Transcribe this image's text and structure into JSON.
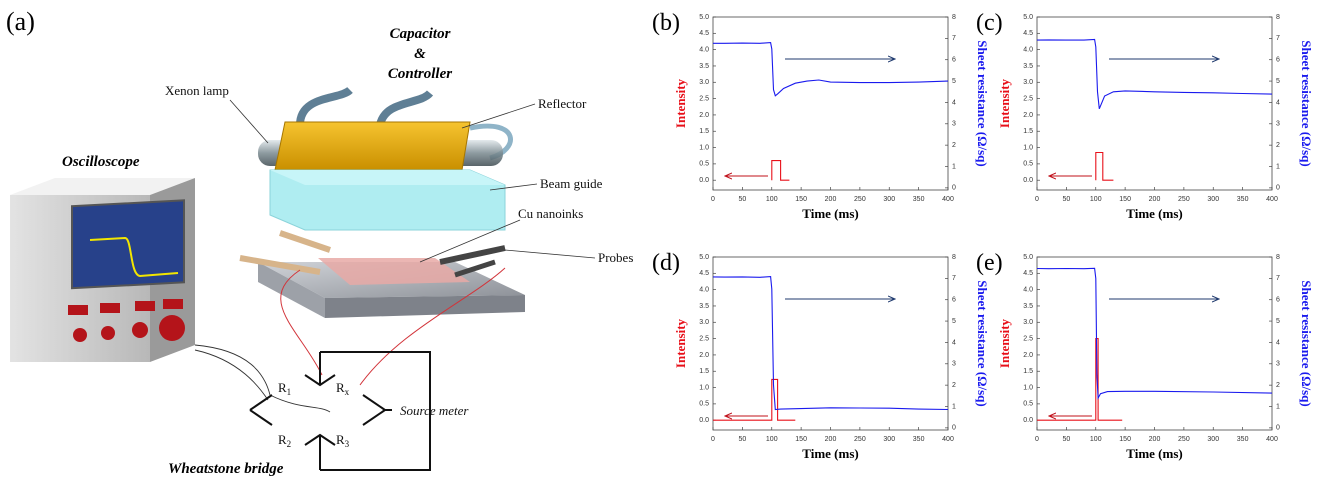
{
  "diagram": {
    "panel": "(a)",
    "capacitor": [
      "Capacitor",
      "&",
      "Controller"
    ],
    "xenon_lamp": "Xenon lamp",
    "reflector": "Reflector",
    "beam_guide": "Beam guide",
    "cu_nanoinks": "Cu nanoinks",
    "probes": "Probes",
    "oscilloscope": "Oscilloscope",
    "resistors": [
      {
        "base": "R",
        "sub": "1"
      },
      {
        "base": "R",
        "sub": "x"
      },
      {
        "base": "R",
        "sub": "2"
      },
      {
        "base": "R",
        "sub": "3"
      }
    ],
    "source_meter": "Source meter",
    "wheatstone_bridge": "Wheatstone bridge"
  },
  "chart_data": [
    {
      "type": "line",
      "panel": "(b)",
      "x_label": "Time (ms)",
      "y_label": "Intensity",
      "y2_label": "Sheet resistance (Ω/sq)",
      "xlim": [
        0,
        400
      ],
      "xticks": [
        0,
        50,
        100,
        150,
        200,
        250,
        300,
        350,
        400
      ],
      "ylim": [
        -0.3,
        5.0
      ],
      "yticks": [
        {
          "value": 0,
          "label": "0.0"
        },
        0.5,
        {
          "value": 1,
          "label": "1.0"
        },
        1.5,
        {
          "value": 2,
          "label": "2.0"
        },
        2.5,
        {
          "value": 3,
          "label": "3.0"
        },
        3.5,
        {
          "value": 4,
          "label": "4.0"
        },
        4.5,
        {
          "value": 5,
          "label": "5.0"
        }
      ],
      "y2lim": [
        -0.1,
        8
      ],
      "y2ticks": [
        0,
        1,
        2,
        3,
        4,
        5,
        6,
        7,
        8
      ],
      "series": [
        {
          "color": "#e8101a",
          "x": [
            100,
            100,
            115,
            115,
            130
          ],
          "values": [
            0,
            0.6,
            0.6,
            0,
            0
          ]
        },
        {
          "color": "#1a1aee",
          "axis": "y2",
          "x": [
            0,
            20,
            50,
            80,
            98,
            100,
            103,
            106,
            110,
            120,
            140,
            160,
            180,
            200,
            250,
            300,
            350,
            400
          ],
          "values": [
            6.77,
            6.77,
            6.78,
            6.77,
            6.8,
            6.5,
            4.6,
            4.31,
            4.4,
            4.65,
            4.9,
            5.0,
            5.05,
            4.95,
            4.93,
            4.93,
            4.95,
            5.0
          ]
        }
      ]
    },
    {
      "type": "line",
      "panel": "(c)",
      "x_label": "Time (ms)",
      "y_label": "Intensity",
      "y2_label": "Sheet resistance (Ω/sq)",
      "xlim": [
        0,
        400
      ],
      "xticks": [
        0,
        50,
        100,
        150,
        200,
        250,
        300,
        350,
        400
      ],
      "ylim": [
        -0.3,
        5.0
      ],
      "yticks": [
        {
          "value": 0,
          "label": "0.0"
        },
        0.5,
        {
          "value": 1,
          "label": "1.0"
        },
        1.5,
        {
          "value": 2,
          "label": "2.0"
        },
        2.5,
        {
          "value": 3,
          "label": "3.0"
        },
        3.5,
        {
          "value": 4,
          "label": "4.0"
        },
        4.5,
        {
          "value": 5,
          "label": "5.0"
        }
      ],
      "y2lim": [
        -0.1,
        8
      ],
      "y2ticks": [
        0,
        1,
        2,
        3,
        4,
        5,
        6,
        7,
        8
      ],
      "series": [
        {
          "color": "#e8101a",
          "x": [
            100,
            100,
            112,
            112,
            130
          ],
          "values": [
            0,
            0.85,
            0.85,
            0,
            0
          ]
        },
        {
          "color": "#1a1aee",
          "axis": "y2",
          "x": [
            0,
            20,
            50,
            80,
            98,
            100,
            103,
            106,
            115,
            130,
            150,
            200,
            250,
            300,
            350,
            400
          ],
          "values": [
            6.92,
            6.93,
            6.92,
            6.92,
            6.95,
            6.6,
            4.5,
            3.7,
            4.3,
            4.5,
            4.54,
            4.5,
            4.47,
            4.45,
            4.42,
            4.39
          ]
        }
      ]
    },
    {
      "type": "line",
      "panel": "(d)",
      "x_label": "Time (ms)",
      "y_label": "Intensity",
      "y2_label": "Sheet resistance (Ω/sq)",
      "xlim": [
        0,
        400
      ],
      "xticks": [
        0,
        50,
        100,
        150,
        200,
        250,
        300,
        350,
        400
      ],
      "ylim": [
        -0.3,
        5.0
      ],
      "yticks": [
        {
          "value": 0,
          "label": "0.0"
        },
        0.5,
        {
          "value": 1,
          "label": "1.0"
        },
        1.5,
        {
          "value": 2,
          "label": "2.0"
        },
        2.5,
        {
          "value": 3,
          "label": "3.0"
        },
        3.5,
        {
          "value": 4,
          "label": "4.0"
        },
        4.5,
        {
          "value": 5,
          "label": "5.0"
        }
      ],
      "y2lim": [
        -0.1,
        8
      ],
      "y2ticks": [
        0,
        1,
        2,
        3,
        4,
        5,
        6,
        7,
        8
      ],
      "series": [
        {
          "color": "#e8101a",
          "x": [
            0,
            100,
            100,
            110,
            110,
            140
          ],
          "values": [
            0,
            0,
            1.25,
            1.25,
            0,
            0
          ]
        },
        {
          "color": "#1a1aee",
          "axis": "y2",
          "x": [
            0,
            20,
            50,
            80,
            98,
            100,
            103,
            106,
            115,
            150,
            200,
            250,
            300,
            350,
            400
          ],
          "values": [
            7.07,
            7.06,
            7.07,
            7.05,
            7.08,
            6.5,
            2.0,
            0.86,
            0.88,
            0.9,
            0.94,
            0.93,
            0.92,
            0.88,
            0.86
          ]
        }
      ]
    },
    {
      "type": "line",
      "panel": "(e)",
      "x_label": "Time (ms)",
      "y_label": "Intensity",
      "y2_label": "Sheet resistance (Ω/sq)",
      "xlim": [
        0,
        400
      ],
      "xticks": [
        0,
        50,
        100,
        150,
        200,
        250,
        300,
        350,
        400
      ],
      "ylim": [
        -0.3,
        5.0
      ],
      "yticks": [
        {
          "value": 0,
          "label": "0.0"
        },
        0.5,
        {
          "value": 1,
          "label": "1.0"
        },
        1.5,
        {
          "value": 2,
          "label": "2.0"
        },
        2.5,
        {
          "value": 3,
          "label": "3.0"
        },
        3.5,
        {
          "value": 4,
          "label": "4.0"
        },
        4.5,
        {
          "value": 5,
          "label": "5.0"
        }
      ],
      "y2lim": [
        -0.1,
        8
      ],
      "y2ticks": [
        0,
        1,
        2,
        3,
        4,
        5,
        6,
        7,
        8
      ],
      "series": [
        {
          "color": "#e8101a",
          "x": [
            0,
            100,
            100,
            104,
            104,
            145
          ],
          "values": [
            0,
            0,
            2.5,
            2.5,
            0,
            0
          ]
        },
        {
          "color": "#1a1aee",
          "axis": "y2",
          "x": [
            0,
            20,
            50,
            80,
            98,
            100,
            102,
            104,
            108,
            120,
            150,
            200,
            300,
            400
          ],
          "values": [
            7.46,
            7.45,
            7.46,
            7.45,
            7.47,
            7.0,
            2.5,
            1.4,
            1.6,
            1.7,
            1.71,
            1.71,
            1.68,
            1.63
          ]
        }
      ]
    }
  ]
}
